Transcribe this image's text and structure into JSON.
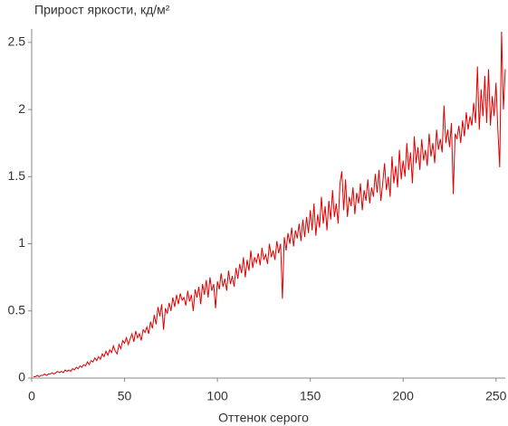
{
  "chart_data": {
    "type": "line",
    "title": "Прирост яркости, кд/м²",
    "x_label": "Оттенок серого",
    "x": [
      1,
      2,
      3,
      4,
      5,
      6,
      7,
      8,
      9,
      10,
      11,
      12,
      13,
      14,
      15,
      16,
      17,
      18,
      19,
      20,
      21,
      22,
      23,
      24,
      25,
      26,
      27,
      28,
      29,
      30,
      31,
      32,
      33,
      34,
      35,
      36,
      37,
      38,
      39,
      40,
      41,
      42,
      43,
      44,
      45,
      46,
      47,
      48,
      49,
      50,
      51,
      52,
      53,
      54,
      55,
      56,
      57,
      58,
      59,
      60,
      61,
      62,
      63,
      64,
      65,
      66,
      67,
      68,
      69,
      70,
      71,
      72,
      73,
      74,
      75,
      76,
      77,
      78,
      79,
      80,
      81,
      82,
      83,
      84,
      85,
      86,
      87,
      88,
      89,
      90,
      91,
      92,
      93,
      94,
      95,
      96,
      97,
      98,
      99,
      100,
      101,
      102,
      103,
      104,
      105,
      106,
      107,
      108,
      109,
      110,
      111,
      112,
      113,
      114,
      115,
      116,
      117,
      118,
      119,
      120,
      121,
      122,
      123,
      124,
      125,
      126,
      127,
      128,
      129,
      130,
      131,
      132,
      133,
      134,
      135,
      136,
      137,
      138,
      139,
      140,
      141,
      142,
      143,
      144,
      145,
      146,
      147,
      148,
      149,
      150,
      151,
      152,
      153,
      154,
      155,
      156,
      157,
      158,
      159,
      160,
      161,
      162,
      163,
      164,
      165,
      166,
      167,
      168,
      169,
      170,
      171,
      172,
      173,
      174,
      175,
      176,
      177,
      178,
      179,
      180,
      181,
      182,
      183,
      184,
      185,
      186,
      187,
      188,
      189,
      190,
      191,
      192,
      193,
      194,
      195,
      196,
      197,
      198,
      199,
      200,
      201,
      202,
      203,
      204,
      205,
      206,
      207,
      208,
      209,
      210,
      211,
      212,
      213,
      214,
      215,
      216,
      217,
      218,
      219,
      220,
      221,
      222,
      223,
      224,
      225,
      226,
      227,
      228,
      229,
      230,
      231,
      232,
      233,
      234,
      235,
      236,
      237,
      238,
      239,
      240,
      241,
      242,
      243,
      244,
      245,
      246,
      247,
      248,
      249,
      250,
      251,
      252,
      253,
      254,
      255
    ],
    "series": [
      {
        "color": "#e00000",
        "values": [
          0.01,
          0.01,
          0.02,
          0.01,
          0.02,
          0.02,
          0.03,
          0.02,
          0.03,
          0.03,
          0.04,
          0.03,
          0.04,
          0.05,
          0.04,
          0.05,
          0.04,
          0.06,
          0.05,
          0.06,
          0.05,
          0.07,
          0.06,
          0.08,
          0.07,
          0.09,
          0.08,
          0.1,
          0.09,
          0.12,
          0.1,
          0.13,
          0.12,
          0.15,
          0.13,
          0.16,
          0.14,
          0.18,
          0.16,
          0.2,
          0.17,
          0.21,
          0.19,
          0.24,
          0.2,
          0.18,
          0.25,
          0.22,
          0.28,
          0.26,
          0.3,
          0.25,
          0.29,
          0.33,
          0.27,
          0.35,
          0.3,
          0.33,
          0.28,
          0.36,
          0.34,
          0.38,
          0.33,
          0.42,
          0.37,
          0.47,
          0.4,
          0.53,
          0.46,
          0.55,
          0.36,
          0.52,
          0.48,
          0.56,
          0.5,
          0.6,
          0.53,
          0.62,
          0.55,
          0.63,
          0.58,
          0.6,
          0.54,
          0.65,
          0.57,
          0.62,
          0.5,
          0.66,
          0.6,
          0.68,
          0.55,
          0.7,
          0.62,
          0.73,
          0.6,
          0.75,
          0.65,
          0.7,
          0.52,
          0.72,
          0.66,
          0.78,
          0.68,
          0.74,
          0.65,
          0.8,
          0.7,
          0.76,
          0.68,
          0.82,
          0.74,
          0.85,
          0.78,
          0.9,
          0.75,
          0.88,
          0.8,
          0.95,
          0.82,
          0.9,
          0.86,
          0.93,
          0.84,
          0.97,
          0.88,
          0.92,
          0.85,
          1.0,
          0.9,
          0.95,
          0.88,
          1.02,
          0.93,
          1.0,
          0.59,
          1.05,
          0.95,
          1.08,
          1.0,
          1.12,
          0.98,
          1.1,
          1.04,
          1.15,
          1.02,
          1.18,
          1.05,
          1.2,
          1.08,
          1.25,
          1.1,
          1.3,
          1.06,
          1.22,
          1.12,
          1.35,
          1.15,
          1.28,
          1.1,
          1.32,
          1.18,
          1.4,
          1.2,
          1.3,
          1.15,
          1.45,
          1.54,
          1.25,
          1.48,
          1.2,
          1.35,
          1.28,
          1.42,
          1.22,
          1.38,
          1.3,
          1.45,
          1.25,
          1.4,
          1.32,
          1.48,
          1.3,
          1.42,
          1.35,
          1.52,
          1.38,
          1.55,
          1.32,
          1.45,
          1.6,
          1.4,
          1.5,
          1.35,
          1.65,
          1.45,
          1.58,
          1.42,
          1.7,
          1.48,
          1.62,
          1.5,
          1.75,
          1.55,
          1.68,
          1.45,
          1.8,
          1.6,
          1.72,
          1.55,
          1.78,
          1.62,
          1.7,
          1.58,
          1.82,
          1.65,
          1.75,
          1.6,
          1.85,
          1.7,
          1.78,
          1.68,
          2.03,
          1.75,
          1.85,
          1.72,
          1.9,
          1.37,
          1.82,
          1.78,
          1.88,
          1.75,
          1.92,
          1.8,
          1.98,
          1.85,
          1.95,
          1.88,
          2.05,
          1.9,
          2.32,
          1.85,
          2.15,
          1.95,
          2.25,
          1.9,
          2.3,
          1.88,
          2.1,
          1.95,
          2.2,
          1.85,
          1.57,
          2.58,
          2.0,
          2.3
        ]
      }
    ],
    "xlim": [
      0,
      255
    ],
    "ylim": [
      0,
      2.6
    ],
    "xticks": [
      0,
      50,
      100,
      150,
      200,
      250
    ],
    "yticks": [
      0,
      0.5,
      1,
      1.5,
      2,
      2.5
    ]
  }
}
